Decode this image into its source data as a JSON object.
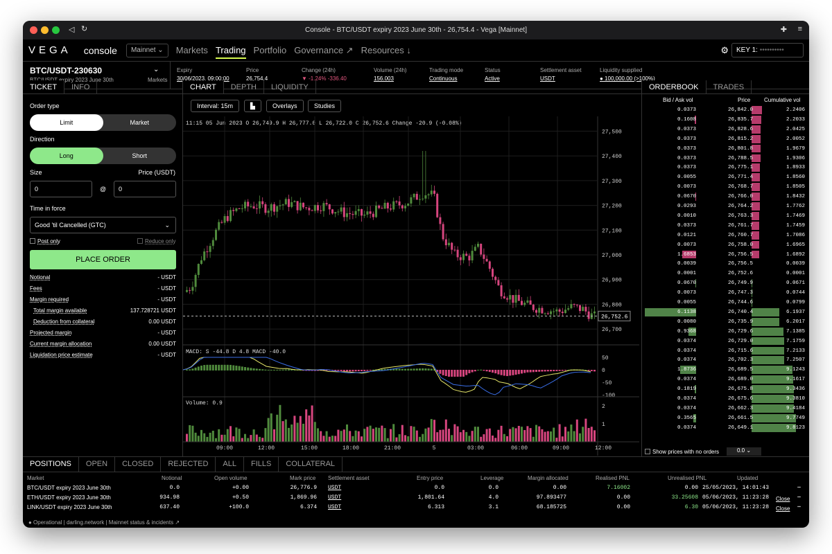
{
  "window": {
    "title": "Console - BTC/USDT expiry 2023 June 30th - 26,754.4 - Vega [Mainnet]"
  },
  "nav": {
    "logo": "VEGA",
    "app": "console",
    "network": "Mainnet",
    "links": [
      "Markets",
      "Trading",
      "Portfolio",
      "Governance ↗",
      "Resources ↓"
    ],
    "key_label": "KEY 1:",
    "key_value": "••••••••••"
  },
  "market": {
    "code": "BTC/USDT-230630",
    "name": "BTC/USDT expiry 2023 June 30th",
    "markets_link": "Markets",
    "stats": [
      {
        "label": "Expiry",
        "value": "30/06/2023, 09:00:00"
      },
      {
        "label": "Price",
        "value": "26,754.4"
      },
      {
        "label": "Change (24h)",
        "value": "▼ -1.24%  -336.40"
      },
      {
        "label": "Volume (24h)",
        "value": "156.003"
      },
      {
        "label": "Trading mode",
        "value": "Continuous"
      },
      {
        "label": "Status",
        "value": "Active"
      },
      {
        "label": "Settlement asset",
        "value": "USDT"
      },
      {
        "label": "Liquidity supplied",
        "value": "● 100,000.00 (>100%)"
      }
    ]
  },
  "ticket": {
    "tabs": [
      "TICKET",
      "INFO"
    ],
    "order_type": "Order type",
    "limit": "Limit",
    "market": "Market",
    "direction": "Direction",
    "long": "Long",
    "short": "Short",
    "size": "Size",
    "price": "Price (USDT)",
    "size_val": "0",
    "price_val": "0",
    "at": "@",
    "tif": "Time in force",
    "tif_val": "Good 'til Cancelled (GTC)",
    "post_only": "Post only",
    "reduce_only": "Reduce only",
    "place": "PLACE ORDER",
    "rows": [
      [
        "Notional",
        "- USDT"
      ],
      [
        "Fees",
        "- USDT"
      ],
      [
        "Margin required",
        "- USDT"
      ],
      [
        "Total margin available",
        "137.728721 USDT"
      ],
      [
        "Deduction from collateral",
        "0.00 USDT"
      ],
      [
        "Projected margin",
        "- USDT"
      ],
      [
        "Current margin allocation",
        "0.00 USDT"
      ],
      [
        "Liquidation price estimate",
        "- USDT"
      ]
    ]
  },
  "chart": {
    "tabs": [
      "CHART",
      "DEPTH",
      "LIQUIDITY"
    ],
    "interval": "Interval: 15m",
    "overlays": "Overlays",
    "studies": "Studies",
    "ohlc": "11:15 05 Jun 2023 O 26,749.9 H 26,777.0 L 26,722.0 C 26,752.6 Change -20.9 (-0.08%)",
    "price_ticks": [
      "27,500",
      "27,400",
      "27,300",
      "27,200",
      "27,100",
      "27,000",
      "26,900",
      "26,800",
      "26,700"
    ],
    "last": "26,752.6",
    "macd": "MACD: S -44.8  D 4.8  MACD -40.0",
    "macd_ticks": [
      "50",
      "0",
      "-50",
      "-100"
    ],
    "volume": "Volume: 0.9",
    "vol_ticks": [
      "2",
      "1"
    ],
    "time_ticks": [
      "09:00",
      "12:00",
      "15:00",
      "18:00",
      "21:00",
      "5",
      "03:00",
      "06:00",
      "09:00",
      "12:00"
    ],
    "up": "#4f8a3c",
    "down": "#d6457e"
  },
  "orderbook": {
    "tabs": [
      "ORDERBOOK",
      "TRADES"
    ],
    "headers": [
      "Bid / Ask vol",
      "Price",
      "Cumulative vol"
    ],
    "asks": [
      [
        "0.0373",
        "26,842.0",
        "2.2406"
      ],
      [
        "0.1608",
        "26,835.7",
        "2.2033"
      ],
      [
        "0.0373",
        "26,828.6",
        "2.0425"
      ],
      [
        "0.0373",
        "26,815.2",
        "2.0052"
      ],
      [
        "0.0373",
        "26,801.8",
        "1.9679"
      ],
      [
        "0.0373",
        "26,788.5",
        "1.9306"
      ],
      [
        "0.0373",
        "26,775.1",
        "1.8933"
      ],
      [
        "0.0055",
        "26,771.4",
        "1.8560"
      ],
      [
        "0.0073",
        "26,768.7",
        "1.8505"
      ],
      [
        "0.0670",
        "26,766.0",
        "1.8432"
      ],
      [
        "0.0293",
        "26,764.2",
        "1.7762"
      ],
      [
        "0.0010",
        "26,763.3",
        "1.7469"
      ],
      [
        "0.0373",
        "26,761.7",
        "1.7459"
      ],
      [
        "0.0121",
        "26,760.7",
        "1.7086"
      ],
      [
        "0.0073",
        "26,758.0",
        "1.6965"
      ],
      [
        "1.6853",
        "26,756.5",
        "1.6892"
      ],
      [
        "0.0039",
        "26,756.5",
        "0.0039"
      ]
    ],
    "bids": [
      [
        "0.0001",
        "26,752.6",
        "0.0001"
      ],
      [
        "0.0670",
        "26,749.9",
        "0.0671"
      ],
      [
        "0.0073",
        "26,747.3",
        "0.0744"
      ],
      [
        "0.0055",
        "26,744.6",
        "0.0799"
      ],
      [
        "6.1138",
        "26,740.4",
        "6.1937"
      ],
      [
        "0.0080",
        "26,735.9",
        "6.2017"
      ],
      [
        "0.9368",
        "26,729.6",
        "7.1385"
      ],
      [
        "0.0374",
        "26,729.0",
        "7.1759"
      ],
      [
        "0.0374",
        "26,715.6",
        "7.2133"
      ],
      [
        "0.0374",
        "26,702.3",
        "7.2507"
      ],
      [
        "1.8736",
        "26,689.5",
        "9.1243"
      ],
      [
        "0.0374",
        "26,689.0",
        "9.1617"
      ],
      [
        "0.1819",
        "26,675.8",
        "9.3436"
      ],
      [
        "0.0374",
        "26,675.6",
        "9.3810"
      ],
      [
        "0.0374",
        "26,662.3",
        "9.4184"
      ],
      [
        "0.3565",
        "26,661.5",
        "9.7749"
      ],
      [
        "0.0374",
        "26,649.1",
        "9.8123"
      ]
    ],
    "show_no_orders": "Show prices with no orders",
    "grouping": "0.0"
  },
  "positions": {
    "tabs": [
      "POSITIONS",
      "OPEN",
      "CLOSED",
      "REJECTED",
      "ALL",
      "FILLS",
      "COLLATERAL"
    ],
    "headers": [
      "Market",
      "Notional",
      "Open volume",
      "Mark price",
      "Settlement asset",
      "Entry price",
      "Leverage",
      "Margin allocated",
      "Realised PNL",
      "Unrealised PNL",
      "Updated"
    ],
    "rows": [
      [
        "BTC/USDT expiry 2023 June 30th",
        "0.0",
        "+0.00",
        "26,776.9",
        "USDT",
        "0.0",
        "0.0",
        "0.00",
        "7.16002",
        "0.00",
        "25/05/2023, 14:01:43",
        ""
      ],
      [
        "ETH/USDT expiry 2023 June 30th",
        "934.98",
        "+0.50",
        "1,869.96",
        "USDT",
        "1,801.64",
        "4.0",
        "97.893477",
        "0.00",
        "33.25608",
        "05/06/2023, 11:23:28",
        "Close"
      ],
      [
        "LINK/USDT expiry 2023 June 30th",
        "637.40",
        "+100.0",
        "6.374",
        "USDT",
        "6.313",
        "3.1",
        "68.185725",
        "0.00",
        "6.30",
        "05/06/2023, 11:23:28",
        "Close"
      ]
    ]
  },
  "footer": {
    "status": "● Operational | darling.network | Mainnet status & incidents ↗"
  }
}
